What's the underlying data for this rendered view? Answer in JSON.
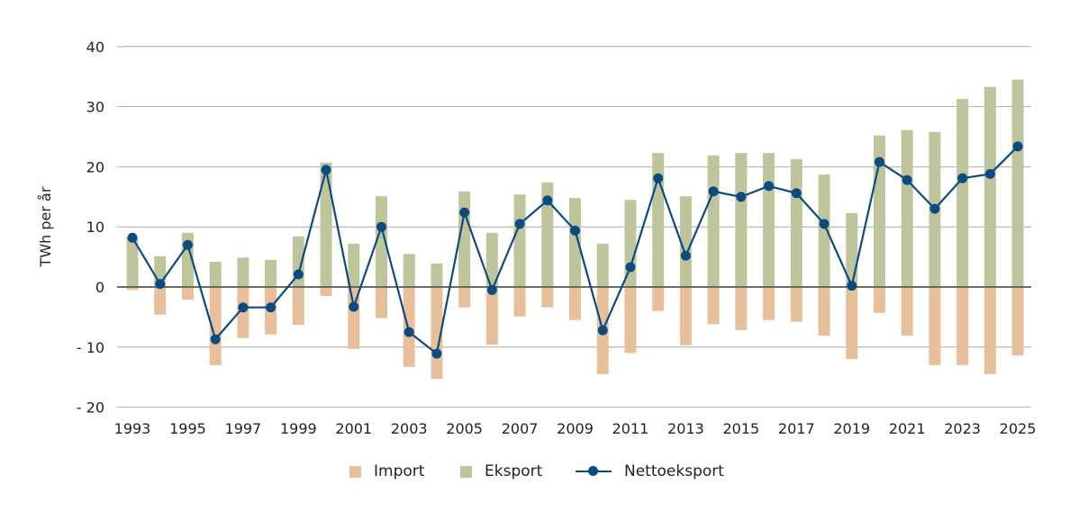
{
  "chart_data": {
    "type": "bar+line",
    "ylabel": "TWh per år",
    "ylim": [
      -20,
      40
    ],
    "yticks": [
      40,
      30,
      20,
      10,
      0,
      -10,
      -20
    ],
    "ytick_labels": [
      "40",
      "30",
      "20",
      "10",
      "0",
      "- 10",
      "- 20"
    ],
    "grid": "horizontal",
    "legend_position": "bottom",
    "x": [
      1993,
      1994,
      1995,
      1996,
      1997,
      1998,
      1999,
      2000,
      2001,
      2002,
      2003,
      2004,
      2005,
      2006,
      2007,
      2008,
      2009,
      2010,
      2011,
      2012,
      2013,
      2014,
      2015,
      2016,
      2017,
      2018,
      2019,
      2020,
      2021,
      2022,
      2023,
      2024,
      2025
    ],
    "xtick_labels": [
      "1993",
      "1995",
      "1997",
      "1999",
      "2001",
      "2003",
      "2005",
      "2007",
      "2009",
      "2011",
      "2013",
      "2015",
      "2017",
      "2019",
      "2021",
      "2023",
      "2025"
    ],
    "series": [
      {
        "name": "Import",
        "type": "bar",
        "color": "#e8bf9b",
        "values": [
          -0.5,
          -4.6,
          -2.1,
          -13.0,
          -8.5,
          -7.9,
          -6.3,
          -1.5,
          -10.3,
          -5.2,
          -13.3,
          -15.3,
          -3.4,
          -9.6,
          -4.9,
          -3.4,
          -5.5,
          -14.5,
          -11.0,
          -4.0,
          -9.7,
          -6.2,
          -7.2,
          -5.5,
          -5.8,
          -8.1,
          -12.0,
          -4.3,
          -8.1,
          -13.0,
          -13.0,
          -14.5,
          -11.4
        ]
      },
      {
        "name": "Eksport",
        "type": "bar",
        "color": "#bfc59a",
        "values": [
          8.3,
          5.1,
          9.0,
          4.2,
          4.9,
          4.5,
          8.4,
          20.7,
          7.2,
          15.1,
          5.5,
          3.9,
          15.9,
          9.0,
          15.4,
          17.4,
          14.8,
          7.2,
          14.5,
          22.3,
          15.1,
          21.9,
          22.3,
          22.3,
          21.3,
          18.7,
          12.3,
          25.2,
          26.1,
          25.8,
          31.3,
          33.3,
          34.5
        ]
      },
      {
        "name": "Nettoeksport",
        "type": "line",
        "color": "#0b4a82",
        "values": [
          8.2,
          0.5,
          7.0,
          -8.7,
          -3.4,
          -3.4,
          2.1,
          19.5,
          -3.3,
          10.0,
          -7.5,
          -11.1,
          12.4,
          -0.5,
          10.5,
          14.4,
          9.4,
          -7.2,
          3.3,
          18.1,
          5.2,
          15.9,
          15.0,
          16.8,
          15.6,
          10.5,
          0.2,
          20.8,
          17.8,
          13.0,
          18.1,
          18.8,
          23.4
        ]
      }
    ]
  }
}
